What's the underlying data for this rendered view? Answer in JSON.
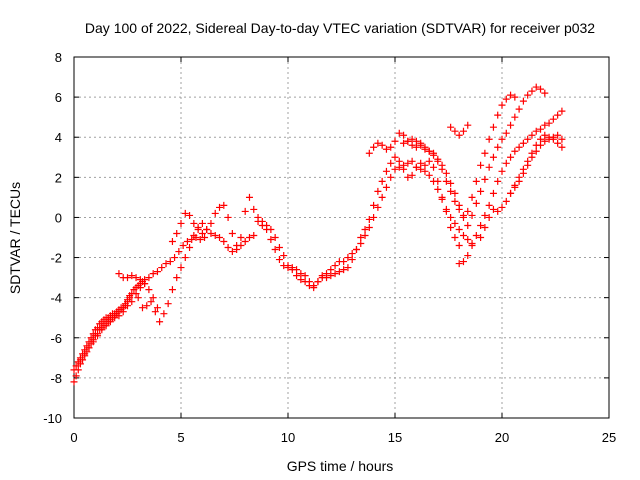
{
  "chart_data": {
    "type": "scatter",
    "title": "Day 100 of 2022, Sidereal Day-to-day VTEC variation (SDTVAR) for receiver p032",
    "xlabel": "GPS time / hours",
    "ylabel": "SDTVAR / TECUs",
    "xlim": [
      0,
      25
    ],
    "ylim": [
      -10,
      8
    ],
    "x_ticks": [
      "0",
      "5",
      "10",
      "15",
      "20",
      "25"
    ],
    "y_ticks": [
      "-10",
      "-8",
      "-6",
      "-4",
      "-2",
      "0",
      "2",
      "4",
      "6",
      "8"
    ],
    "grid": true,
    "marker": "plus",
    "colors": {
      "series": "#ff0000"
    },
    "series": [
      {
        "x": [
          0.0,
          0.1,
          0.2,
          0.3,
          0.4,
          0.5,
          0.6,
          0.7,
          0.8,
          0.9,
          1.0,
          1.1,
          1.2,
          1.3,
          1.4,
          1.5,
          1.6,
          1.7,
          1.8,
          1.9,
          2.0,
          2.1,
          2.2,
          2.3,
          2.4,
          2.5,
          2.6
        ],
        "y": [
          -8.2,
          -7.9,
          -7.6,
          -7.3,
          -7.1,
          -6.9,
          -6.7,
          -6.5,
          -6.3,
          -6.1,
          -5.9,
          -5.8,
          -5.6,
          -5.5,
          -5.4,
          -5.3,
          -5.2,
          -5.1,
          -5.0,
          -4.9,
          -4.8,
          -4.7,
          -4.6,
          -4.5,
          -4.3,
          -4.1,
          -3.9
        ]
      },
      {
        "x": [
          0.0,
          0.1,
          0.2,
          0.3,
          0.4,
          0.5,
          0.6,
          0.7,
          0.8,
          0.9,
          1.0,
          1.1,
          1.2,
          1.3,
          1.4,
          1.5,
          1.6,
          1.7,
          1.8,
          1.9,
          2.0,
          2.1,
          2.2,
          2.3,
          2.4,
          2.5,
          2.6,
          2.7,
          2.8,
          2.9,
          3.0,
          3.1,
          3.2,
          3.3
        ],
        "y": [
          -7.6,
          -7.4,
          -7.2,
          -7.0,
          -6.8,
          -6.6,
          -6.4,
          -6.2,
          -6.0,
          -5.8,
          -5.6,
          -5.5,
          -5.3,
          -5.2,
          -5.1,
          -5.0,
          -5.0,
          -4.9,
          -4.8,
          -4.8,
          -4.7,
          -4.6,
          -4.5,
          -4.5,
          -4.4,
          -4.2,
          -4.0,
          -3.8,
          -3.6,
          -3.5,
          -3.4,
          -3.3,
          -3.2,
          -3.1
        ]
      },
      {
        "x": [
          0.3,
          0.5,
          0.7,
          0.9,
          1.1,
          1.3,
          1.5,
          1.7,
          1.9,
          2.1,
          2.3,
          2.5,
          2.7,
          2.9,
          3.1,
          3.3,
          3.5,
          3.7,
          3.9,
          4.1,
          4.3,
          4.5,
          4.7,
          4.9,
          5.1,
          5.3,
          5.5,
          5.7,
          5.9,
          6.1
        ],
        "y": [
          -7.1,
          -6.8,
          -6.5,
          -6.2,
          -5.9,
          -5.6,
          -5.4,
          -5.2,
          -5.0,
          -4.9,
          -4.7,
          -4.4,
          -4.2,
          -3.8,
          -3.5,
          -3.3,
          -3.0,
          -2.8,
          -2.7,
          -2.5,
          -2.3,
          -2.2,
          -2.0,
          -1.7,
          -1.4,
          -1.2,
          -1.1,
          -1.0,
          -1.1,
          -1.0
        ]
      },
      {
        "x": [
          2.1,
          2.3,
          2.5,
          2.7,
          2.9,
          3.1,
          3.3,
          3.5,
          3.7,
          3.9
        ],
        "y": [
          -2.8,
          -3.0,
          -3.0,
          -2.9,
          -3.0,
          -3.1,
          -3.3,
          -3.6,
          -4.0,
          -4.5
        ]
      },
      {
        "x": [
          3.0,
          3.2,
          3.4,
          3.6,
          3.8,
          4.0,
          4.2,
          4.4,
          4.6,
          4.8,
          5.0,
          5.2,
          5.4,
          5.6,
          5.8,
          6.0,
          6.2,
          6.4,
          6.6,
          6.8,
          7.0,
          7.2,
          7.4,
          7.6,
          7.8,
          8.0,
          8.2,
          8.4
        ],
        "y": [
          -4.0,
          -4.5,
          -4.4,
          -4.2,
          -4.7,
          -5.2,
          -4.8,
          -4.3,
          -3.6,
          -3.0,
          -2.5,
          -2.0,
          -1.5,
          -0.9,
          -0.5,
          -0.3,
          -0.6,
          -0.8,
          -0.9,
          -1.0,
          -1.2,
          -1.5,
          -1.7,
          -1.6,
          -1.4,
          -1.2,
          -1.0,
          -0.9
        ]
      },
      {
        "x": [
          4.6,
          4.8,
          5.0,
          5.2,
          5.4,
          5.6,
          5.8,
          6.0,
          6.2,
          6.4,
          6.6,
          6.8,
          7.0,
          7.2,
          7.4,
          7.6,
          7.8,
          8.0,
          8.2,
          8.4,
          8.6,
          8.8,
          9.0,
          9.2,
          9.4,
          9.6,
          9.8,
          10.0,
          10.2,
          10.4,
          10.6,
          10.8,
          11.0,
          11.2,
          11.4,
          11.6,
          11.8,
          12.0,
          12.2,
          12.4,
          12.6,
          12.8,
          13.0,
          13.2,
          13.4,
          13.6,
          13.8,
          14.0,
          14.2,
          14.4,
          14.6,
          14.8,
          15.0,
          15.2,
          15.4,
          15.6,
          15.8,
          16.0,
          16.2,
          16.4,
          16.6,
          16.8,
          17.0,
          17.2,
          17.4,
          17.6,
          17.8,
          18.0
        ],
        "y": [
          -1.2,
          -0.8,
          -0.3,
          0.2,
          0.1,
          -0.3,
          -0.6,
          -0.8,
          -0.6,
          -0.3,
          0.2,
          0.5,
          0.6,
          0.0,
          -0.8,
          -1.4,
          -1.0,
          0.3,
          1.0,
          0.4,
          -0.2,
          -0.4,
          -0.4,
          -0.6,
          -1.0,
          -1.5,
          -1.9,
          -2.4,
          -2.6,
          -2.9,
          -3.1,
          -3.2,
          -3.4,
          -3.5,
          -3.2,
          -3.0,
          -3.0,
          -2.9,
          -2.8,
          -2.7,
          -2.6,
          -2.5,
          -2.1,
          -1.6,
          -1.0,
          -0.6,
          -0.1,
          0.6,
          1.3,
          1.8,
          2.3,
          2.7,
          3.0,
          2.8,
          2.4,
          2.0,
          2.1,
          2.5,
          2.7,
          2.6,
          2.8,
          2.5,
          1.8,
          1.0,
          0.3,
          -0.5,
          -1.0,
          -1.4
        ]
      },
      {
        "x": [
          8.6,
          8.8,
          9.0,
          9.2,
          9.4,
          9.6,
          9.8,
          10.0,
          10.2,
          10.4,
          10.6,
          10.8,
          11.0,
          11.2,
          11.4,
          11.6,
          11.8,
          12.0,
          12.2,
          12.4,
          12.6,
          12.8,
          13.0,
          13.2,
          13.4,
          13.6,
          13.8,
          14.0,
          14.2,
          14.4,
          14.6,
          14.8,
          15.0,
          15.2,
          15.4,
          15.6,
          15.8,
          16.0,
          16.2,
          16.4,
          16.6,
          16.8,
          17.0,
          17.2,
          17.4,
          17.6,
          17.8,
          18.0,
          18.2,
          18.4,
          18.6
        ],
        "y": [
          0.0,
          -0.2,
          -0.6,
          -1.1,
          -1.6,
          -2.1,
          -2.4,
          -2.5,
          -2.5,
          -2.6,
          -2.8,
          -2.9,
          -3.2,
          -3.4,
          -3.2,
          -2.9,
          -2.8,
          -2.6,
          -2.4,
          -2.2,
          -2.2,
          -2.0,
          -1.8,
          -1.6,
          -1.3,
          -0.9,
          -0.5,
          0.0,
          0.5,
          1.0,
          1.5,
          2.0,
          2.4,
          2.5,
          2.6,
          2.7,
          2.8,
          2.5,
          2.4,
          2.3,
          2.1,
          1.8,
          1.4,
          0.9,
          0.4,
          0.0,
          -0.3,
          -0.6,
          -0.9,
          -1.1,
          -1.3
        ]
      },
      {
        "x": [
          13.8,
          14.0,
          14.2,
          14.4,
          14.6,
          14.8,
          15.0,
          15.2,
          15.4,
          15.6,
          15.8,
          16.0,
          16.2,
          16.4,
          16.6,
          16.8,
          17.0,
          17.2,
          17.4,
          17.6,
          17.8,
          18.0,
          18.2,
          18.4,
          18.6,
          18.8,
          19.0,
          19.2,
          19.4,
          19.6,
          19.8,
          20.0,
          20.2,
          20.4,
          20.6
        ],
        "y": [
          3.2,
          3.5,
          3.7,
          3.6,
          3.4,
          3.5,
          3.8,
          4.2,
          4.1,
          3.8,
          3.6,
          3.5,
          3.7,
          3.5,
          3.3,
          3.2,
          2.9,
          2.6,
          2.2,
          1.7,
          1.2,
          0.6,
          0.1,
          0.3,
          1.0,
          1.8,
          2.6,
          3.2,
          3.9,
          4.5,
          5.1,
          5.6,
          5.9,
          6.1,
          6.0
        ]
      },
      {
        "x": [
          15.4,
          15.6,
          15.8,
          16.0,
          16.2,
          16.4,
          16.6,
          16.8,
          17.0,
          17.2,
          17.4,
          17.6,
          17.8,
          18.0,
          18.2,
          18.4,
          18.6,
          18.8,
          19.0,
          19.2,
          19.4,
          19.6,
          19.8,
          20.0,
          20.2,
          20.4,
          20.6,
          20.8,
          21.0,
          21.2,
          21.4,
          21.6,
          21.8,
          22.0
        ],
        "y": [
          3.7,
          3.8,
          3.9,
          3.8,
          3.6,
          3.4,
          3.3,
          3.1,
          2.8,
          2.4,
          1.8,
          1.3,
          0.8,
          0.4,
          0.0,
          -0.4,
          0.1,
          0.7,
          1.3,
          1.9,
          2.5,
          3.0,
          3.5,
          3.9,
          4.2,
          4.6,
          5.0,
          5.4,
          5.8,
          6.1,
          6.3,
          6.5,
          6.4,
          6.2
        ]
      },
      {
        "x": [
          18.0,
          18.2,
          18.4,
          18.6,
          18.8,
          19.0,
          19.2,
          19.4,
          19.6,
          19.8,
          20.0,
          20.2,
          20.4,
          20.6,
          20.8,
          21.0,
          21.2,
          21.4,
          21.6,
          21.8,
          22.0,
          22.2,
          22.4,
          22.6,
          22.8
        ],
        "y": [
          -2.3,
          -2.2,
          -1.9,
          -1.4,
          -0.9,
          -0.4,
          0.1,
          0.6,
          1.2,
          1.8,
          2.3,
          2.7,
          3.0,
          3.3,
          3.5,
          3.7,
          3.9,
          4.1,
          4.3,
          4.4,
          4.6,
          4.7,
          4.9,
          5.1,
          5.3
        ]
      },
      {
        "x": [
          19.0,
          19.2,
          19.4,
          19.6,
          19.8,
          20.0,
          20.2,
          20.4,
          20.6,
          20.8,
          21.0,
          21.2,
          21.4,
          21.6,
          21.8,
          22.0,
          22.2,
          22.4,
          22.6,
          22.8
        ],
        "y": [
          -1.0,
          -0.5,
          0.0,
          0.4,
          0.3,
          0.5,
          0.8,
          1.2,
          1.6,
          2.0,
          2.4,
          2.8,
          3.2,
          3.6,
          3.9,
          4.1,
          4.0,
          3.9,
          3.7,
          3.5
        ]
      },
      {
        "x": [
          20.4,
          20.6,
          20.8,
          21.0,
          21.2,
          21.4,
          21.6,
          21.8,
          22.0,
          22.2,
          22.4,
          22.6,
          22.8
        ],
        "y": [
          1.2,
          1.5,
          1.8,
          2.2,
          2.6,
          3.0,
          3.3,
          3.6,
          3.8,
          3.9,
          4.0,
          4.1,
          3.9
        ]
      },
      {
        "x": [
          17.6,
          17.8,
          18.0,
          18.2,
          18.4
        ],
        "y": [
          4.5,
          4.3,
          4.1,
          4.3,
          4.6
        ]
      }
    ]
  }
}
